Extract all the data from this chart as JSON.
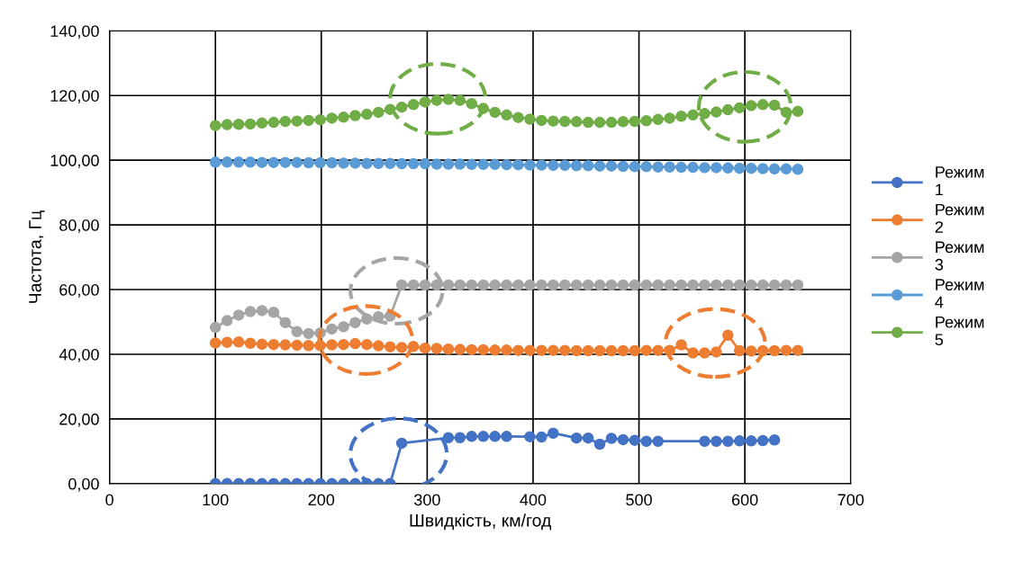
{
  "chart_data": {
    "type": "line",
    "xlabel": "Швидкість, км/год",
    "ylabel": "Частота, Гц",
    "series": [
      {
        "name": "Режим 1",
        "color": "#4472c4",
        "x": [
          100,
          111,
          122,
          133,
          144,
          155,
          166,
          177,
          188,
          199,
          210,
          221,
          232,
          243,
          254,
          265,
          276,
          320,
          331,
          342,
          353,
          364,
          375,
          397,
          408,
          419,
          441,
          452,
          463,
          474,
          485,
          496,
          507,
          518,
          562,
          573,
          584,
          595,
          606,
          617,
          628
        ],
        "values": [
          0,
          0,
          0,
          0,
          0,
          0,
          0,
          0,
          0,
          0,
          0,
          0,
          0,
          0,
          0,
          0,
          12.5,
          14.2,
          14.2,
          14.6,
          14.6,
          14.6,
          14.6,
          14.5,
          14.4,
          15.6,
          14.1,
          14.1,
          12.2,
          14.0,
          13.6,
          13.4,
          13.1,
          13.1,
          13.1,
          13.1,
          13.1,
          13.2,
          13.2,
          13.3,
          13.5
        ]
      },
      {
        "name": "Режим 2",
        "color": "#ed7d31",
        "x": [
          100,
          111,
          122,
          133,
          144,
          155,
          166,
          177,
          188,
          199,
          210,
          221,
          232,
          243,
          254,
          265,
          276,
          287,
          298,
          309,
          320,
          331,
          342,
          353,
          364,
          375,
          386,
          397,
          408,
          419,
          430,
          441,
          452,
          463,
          474,
          485,
          496,
          507,
          518,
          529,
          540,
          551,
          562,
          573,
          584,
          595,
          606,
          617,
          628,
          639,
          650
        ],
        "values": [
          43.5,
          43.7,
          43.8,
          43.4,
          43.1,
          43.0,
          42.9,
          42.8,
          42.7,
          42.7,
          42.9,
          43.0,
          43.3,
          43.0,
          42.6,
          42.3,
          42.1,
          42.4,
          41.9,
          41.8,
          41.6,
          41.5,
          41.4,
          41.4,
          41.3,
          41.3,
          41.2,
          41.2,
          41.2,
          41.2,
          41.2,
          41.1,
          41.1,
          41.1,
          41.1,
          41.1,
          41.1,
          41.2,
          41.2,
          41.2,
          42.9,
          40.4,
          40.4,
          40.7,
          45.9,
          41.1,
          41.0,
          41.1,
          41.1,
          41.2,
          41.2
        ]
      },
      {
        "name": "Режим 3",
        "color": "#a5a5a5",
        "x": [
          100,
          111,
          122,
          133,
          144,
          155,
          166,
          177,
          188,
          199,
          210,
          221,
          232,
          243,
          254,
          265,
          276,
          287,
          298,
          309,
          320,
          331,
          342,
          353,
          364,
          375,
          386,
          397,
          408,
          419,
          430,
          441,
          452,
          463,
          474,
          485,
          496,
          507,
          518,
          529,
          540,
          551,
          562,
          573,
          584,
          595,
          606,
          617,
          628,
          639,
          650
        ],
        "values": [
          48.3,
          50.4,
          52.1,
          53.2,
          53.5,
          53.0,
          49.8,
          47.0,
          46.4,
          46.6,
          47.8,
          48.5,
          49.8,
          50.9,
          51.6,
          51.8,
          61.4,
          61.4,
          61.4,
          61.4,
          61.4,
          61.4,
          61.4,
          61.4,
          61.4,
          61.4,
          61.4,
          61.4,
          61.4,
          61.4,
          61.4,
          61.4,
          61.4,
          61.4,
          61.4,
          61.4,
          61.4,
          61.4,
          61.4,
          61.4,
          61.4,
          61.4,
          61.4,
          61.4,
          61.4,
          61.4,
          61.4,
          61.4,
          61.4,
          61.4,
          61.4
        ]
      },
      {
        "name": "Режим 4",
        "color": "#5b9bd5",
        "x": [
          100,
          111,
          122,
          133,
          144,
          155,
          166,
          177,
          188,
          199,
          210,
          221,
          232,
          243,
          254,
          265,
          276,
          287,
          298,
          309,
          320,
          331,
          342,
          353,
          364,
          375,
          386,
          397,
          408,
          419,
          430,
          441,
          452,
          463,
          474,
          485,
          496,
          507,
          518,
          529,
          540,
          551,
          562,
          573,
          584,
          595,
          606,
          617,
          628,
          639,
          650
        ],
        "values": [
          99.4,
          99.4,
          99.4,
          99.4,
          99.3,
          99.3,
          99.3,
          99.3,
          99.2,
          99.2,
          99.2,
          99.1,
          99.1,
          99.0,
          99.0,
          99.0,
          98.9,
          98.9,
          98.9,
          98.8,
          98.8,
          98.8,
          98.7,
          98.7,
          98.7,
          98.6,
          98.6,
          98.5,
          98.5,
          98.4,
          98.4,
          98.3,
          98.3,
          98.2,
          98.2,
          98.1,
          98.0,
          98.0,
          97.9,
          97.9,
          97.8,
          97.8,
          97.7,
          97.7,
          97.6,
          97.5,
          97.5,
          97.4,
          97.3,
          97.3,
          97.2
        ]
      },
      {
        "name": "Режим 5",
        "color": "#70ad47",
        "x": [
          100,
          111,
          122,
          133,
          144,
          155,
          166,
          177,
          188,
          199,
          210,
          221,
          232,
          243,
          254,
          265,
          276,
          287,
          298,
          309,
          320,
          331,
          342,
          353,
          364,
          375,
          386,
          397,
          408,
          419,
          430,
          441,
          452,
          463,
          474,
          485,
          496,
          507,
          518,
          529,
          540,
          551,
          562,
          573,
          584,
          595,
          606,
          617,
          628,
          639,
          650
        ],
        "values": [
          110.7,
          111.0,
          111.1,
          111.2,
          111.5,
          111.7,
          112.0,
          112.1,
          112.3,
          112.5,
          113.0,
          113.3,
          113.8,
          114.2,
          114.8,
          115.7,
          116.4,
          117.2,
          118.0,
          118.5,
          118.8,
          118.5,
          117.5,
          116.0,
          114.8,
          114.0,
          113.2,
          112.7,
          112.3,
          112.1,
          112.0,
          111.9,
          111.7,
          111.7,
          111.7,
          111.9,
          112.0,
          112.2,
          112.6,
          113.0,
          113.6,
          114.0,
          114.4,
          114.9,
          115.6,
          116.2,
          116.9,
          117.2,
          117.0,
          114.8,
          115.1
        ]
      }
    ],
    "xlim": [
      0,
      700
    ],
    "xticks": [
      0,
      100,
      200,
      300,
      400,
      500,
      600,
      700
    ],
    "ylim": [
      0,
      140
    ],
    "yticks": [
      {
        "value": 0,
        "label": "0,00"
      },
      {
        "value": 20,
        "label": "20,00"
      },
      {
        "value": 40,
        "label": "40,00"
      },
      {
        "value": 60,
        "label": "60,00"
      },
      {
        "value": 80,
        "label": "80,00"
      },
      {
        "value": 100,
        "label": "100,00"
      },
      {
        "value": 120,
        "label": "120,00"
      },
      {
        "value": 140,
        "label": "140,00"
      }
    ],
    "grid": true,
    "legend": "right",
    "marker": "circle",
    "line_style": "solid"
  }
}
